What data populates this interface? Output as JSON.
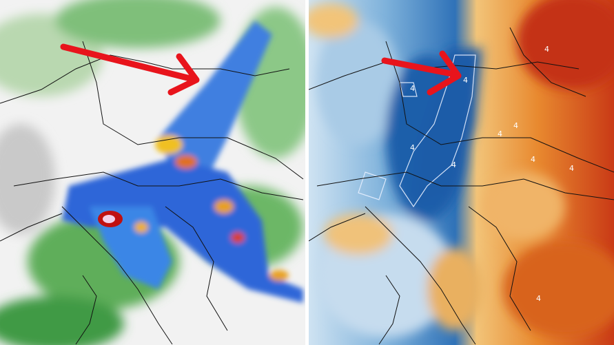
{
  "right_panel": {
    "contour_labels": [
      "4",
      "4",
      "4",
      "4",
      "4",
      "4",
      "4",
      "4",
      "4",
      "4"
    ]
  }
}
